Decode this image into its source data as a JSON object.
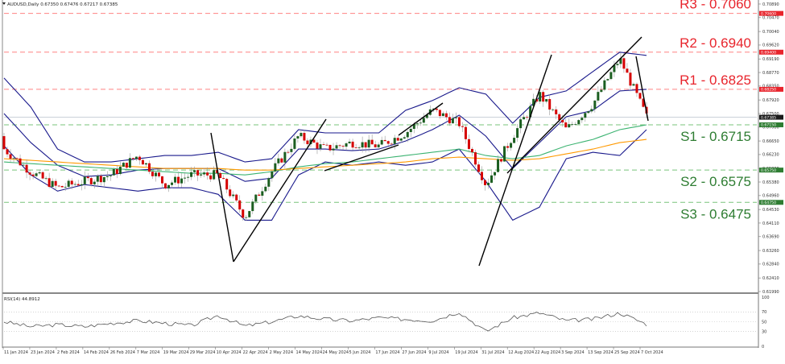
{
  "header": {
    "symbol_line": "AUDUSD,Daily  0.67350 0.67476 0.67217 0.67385"
  },
  "colors": {
    "resistance": "#ff5a5a",
    "resistance_text": "#e8242c",
    "support": "#4caf50",
    "support_text": "#2e7d32",
    "bollinger": "#1a1a8c",
    "ma_green": "#3cb371",
    "ma_orange": "#ff9900",
    "bull_candle": "#1b5e20",
    "bear_candle": "#d50000",
    "trendline": "#000000",
    "rsi_line": "#555555",
    "price_tag_current": "#1a1a1a"
  },
  "levels": {
    "resistance": [
      {
        "label": "R3 - 0.7060",
        "value": 0.706,
        "tag": "0.70600"
      },
      {
        "label": "R2 - 0.6940",
        "value": 0.694,
        "tag": "0.69400"
      },
      {
        "label": "R1 - 0.6825",
        "value": 0.6825,
        "tag": "0.68250"
      }
    ],
    "support": [
      {
        "label": "S1 - 0.6715",
        "value": 0.6715,
        "tag": "0.67150"
      },
      {
        "label": "S2 - 0.6575",
        "value": 0.6575,
        "tag": "0.65750"
      },
      {
        "label": "S3 - 0.6475",
        "value": 0.6475,
        "tag": "0.64750"
      }
    ],
    "current": {
      "value": 0.67385,
      "tag": "0.67385"
    }
  },
  "price_axis": {
    "ticks": [
      "0.70890",
      "0.70470",
      "0.70040",
      "0.69620",
      "0.69190",
      "0.68770",
      "0.68350",
      "0.67920",
      "0.67500",
      "0.67080",
      "0.66650",
      "0.66230",
      "0.65800",
      "0.65380",
      "0.64960",
      "0.64530",
      "0.64110",
      "0.63690",
      "0.63260",
      "0.62840",
      "0.62410",
      "0.61990"
    ]
  },
  "rsi_panel": {
    "label": "RSI(14) 44.8912",
    "ticks": [
      "100",
      "70",
      "50",
      "30",
      "0"
    ]
  },
  "time_axis": {
    "labels": [
      "11 Jan 2024",
      "23 Jan 2024",
      "2 Feb 2024",
      "14 Feb 2024",
      "26 Feb 2024",
      "7 Mar 2024",
      "19 Mar 2024",
      "29 Mar 2024",
      "10 Apr 2024",
      "22 Apr 2024",
      "2 May 2024",
      "14 May 2024",
      "24 May 2024",
      "5 Jun 2024",
      "17 Jun 2024",
      "27 Jun 2024",
      "9 Jul 2024",
      "19 Jul 2024",
      "31 Jul 2024",
      "12 Aug 2024",
      "22 Aug 2024",
      "3 Sep 2024",
      "13 Sep 2024",
      "25 Sep 2024",
      "7 Oct 2024"
    ]
  },
  "chart_data": {
    "type": "candlestick",
    "title": "AUDUSD, Daily",
    "ohlc_last": {
      "open": 0.6735,
      "high": 0.67476,
      "low": 0.67217,
      "close": 0.67385
    },
    "xlabel": "",
    "ylabel": "",
    "ylim": [
      0.6199,
      0.7089
    ],
    "x": [
      "11 Jan 2024",
      "23 Jan 2024",
      "2 Feb 2024",
      "14 Feb 2024",
      "26 Feb 2024",
      "7 Mar 2024",
      "19 Mar 2024",
      "29 Mar 2024",
      "10 Apr 2024",
      "22 Apr 2024",
      "2 May 2024",
      "14 May 2024",
      "24 May 2024",
      "5 Jun 2024",
      "17 Jun 2024",
      "27 Jun 2024",
      "9 Jul 2024",
      "19 Jul 2024",
      "31 Jul 2024",
      "12 Aug 2024",
      "22 Aug 2024",
      "3 Sep 2024",
      "13 Sep 2024",
      "25 Sep 2024",
      "7 Oct 2024"
    ],
    "close_approx": [
      0.664,
      0.657,
      0.652,
      0.654,
      0.656,
      0.662,
      0.653,
      0.656,
      0.656,
      0.643,
      0.657,
      0.668,
      0.664,
      0.666,
      0.665,
      0.669,
      0.676,
      0.672,
      0.653,
      0.668,
      0.681,
      0.67,
      0.678,
      0.692,
      0.674
    ],
    "series": [
      {
        "name": "Bollinger Upper (approx)",
        "values": [
          0.686,
          0.677,
          0.664,
          0.66,
          0.66,
          0.661,
          0.662,
          0.662,
          0.663,
          0.66,
          0.661,
          0.67,
          0.669,
          0.669,
          0.669,
          0.676,
          0.679,
          0.683,
          0.681,
          0.672,
          0.68,
          0.682,
          0.688,
          0.694,
          0.693
        ]
      },
      {
        "name": "Bollinger Middle (approx)",
        "values": [
          0.675,
          0.666,
          0.659,
          0.6555,
          0.656,
          0.6575,
          0.658,
          0.658,
          0.658,
          0.654,
          0.655,
          0.664,
          0.664,
          0.6635,
          0.664,
          0.6665,
          0.67,
          0.6745,
          0.668,
          0.658,
          0.666,
          0.674,
          0.676,
          0.682,
          0.6825
        ]
      },
      {
        "name": "Bollinger Lower (approx)",
        "values": [
          0.665,
          0.656,
          0.651,
          0.653,
          0.652,
          0.651,
          0.652,
          0.652,
          0.65,
          0.642,
          0.642,
          0.656,
          0.66,
          0.659,
          0.66,
          0.659,
          0.66,
          0.664,
          0.654,
          0.642,
          0.646,
          0.661,
          0.663,
          0.662,
          0.67
        ]
      },
      {
        "name": "MA green (approx)",
        "values": [
          0.66,
          0.6595,
          0.659,
          0.6585,
          0.658,
          0.6575,
          0.657,
          0.6565,
          0.6565,
          0.656,
          0.657,
          0.6585,
          0.6595,
          0.66,
          0.661,
          0.662,
          0.663,
          0.664,
          0.662,
          0.661,
          0.662,
          0.665,
          0.667,
          0.67,
          0.6715
        ]
      },
      {
        "name": "MA orange (approx)",
        "values": [
          0.661,
          0.6605,
          0.66,
          0.6595,
          0.659,
          0.6585,
          0.658,
          0.658,
          0.658,
          0.6575,
          0.6575,
          0.658,
          0.6585,
          0.659,
          0.6595,
          0.66,
          0.661,
          0.6615,
          0.661,
          0.6605,
          0.661,
          0.6625,
          0.664,
          0.666,
          0.667
        ]
      },
      {
        "name": "RSI(14) (approx)",
        "values": [
          50,
          40,
          44,
          40,
          47,
          52,
          47,
          42,
          63,
          41,
          50,
          62,
          55,
          52,
          58,
          55,
          52,
          70,
          30,
          58,
          68,
          52,
          55,
          68,
          45
        ]
      }
    ],
    "annotations": [
      "R3 - 0.7060",
      "R2 - 0.6940",
      "R1 - 0.6825",
      "S1 - 0.6715",
      "S2 - 0.6575",
      "S3 - 0.6475",
      "RSI(14) 44.8912"
    ],
    "grid": false,
    "legend": "none"
  }
}
